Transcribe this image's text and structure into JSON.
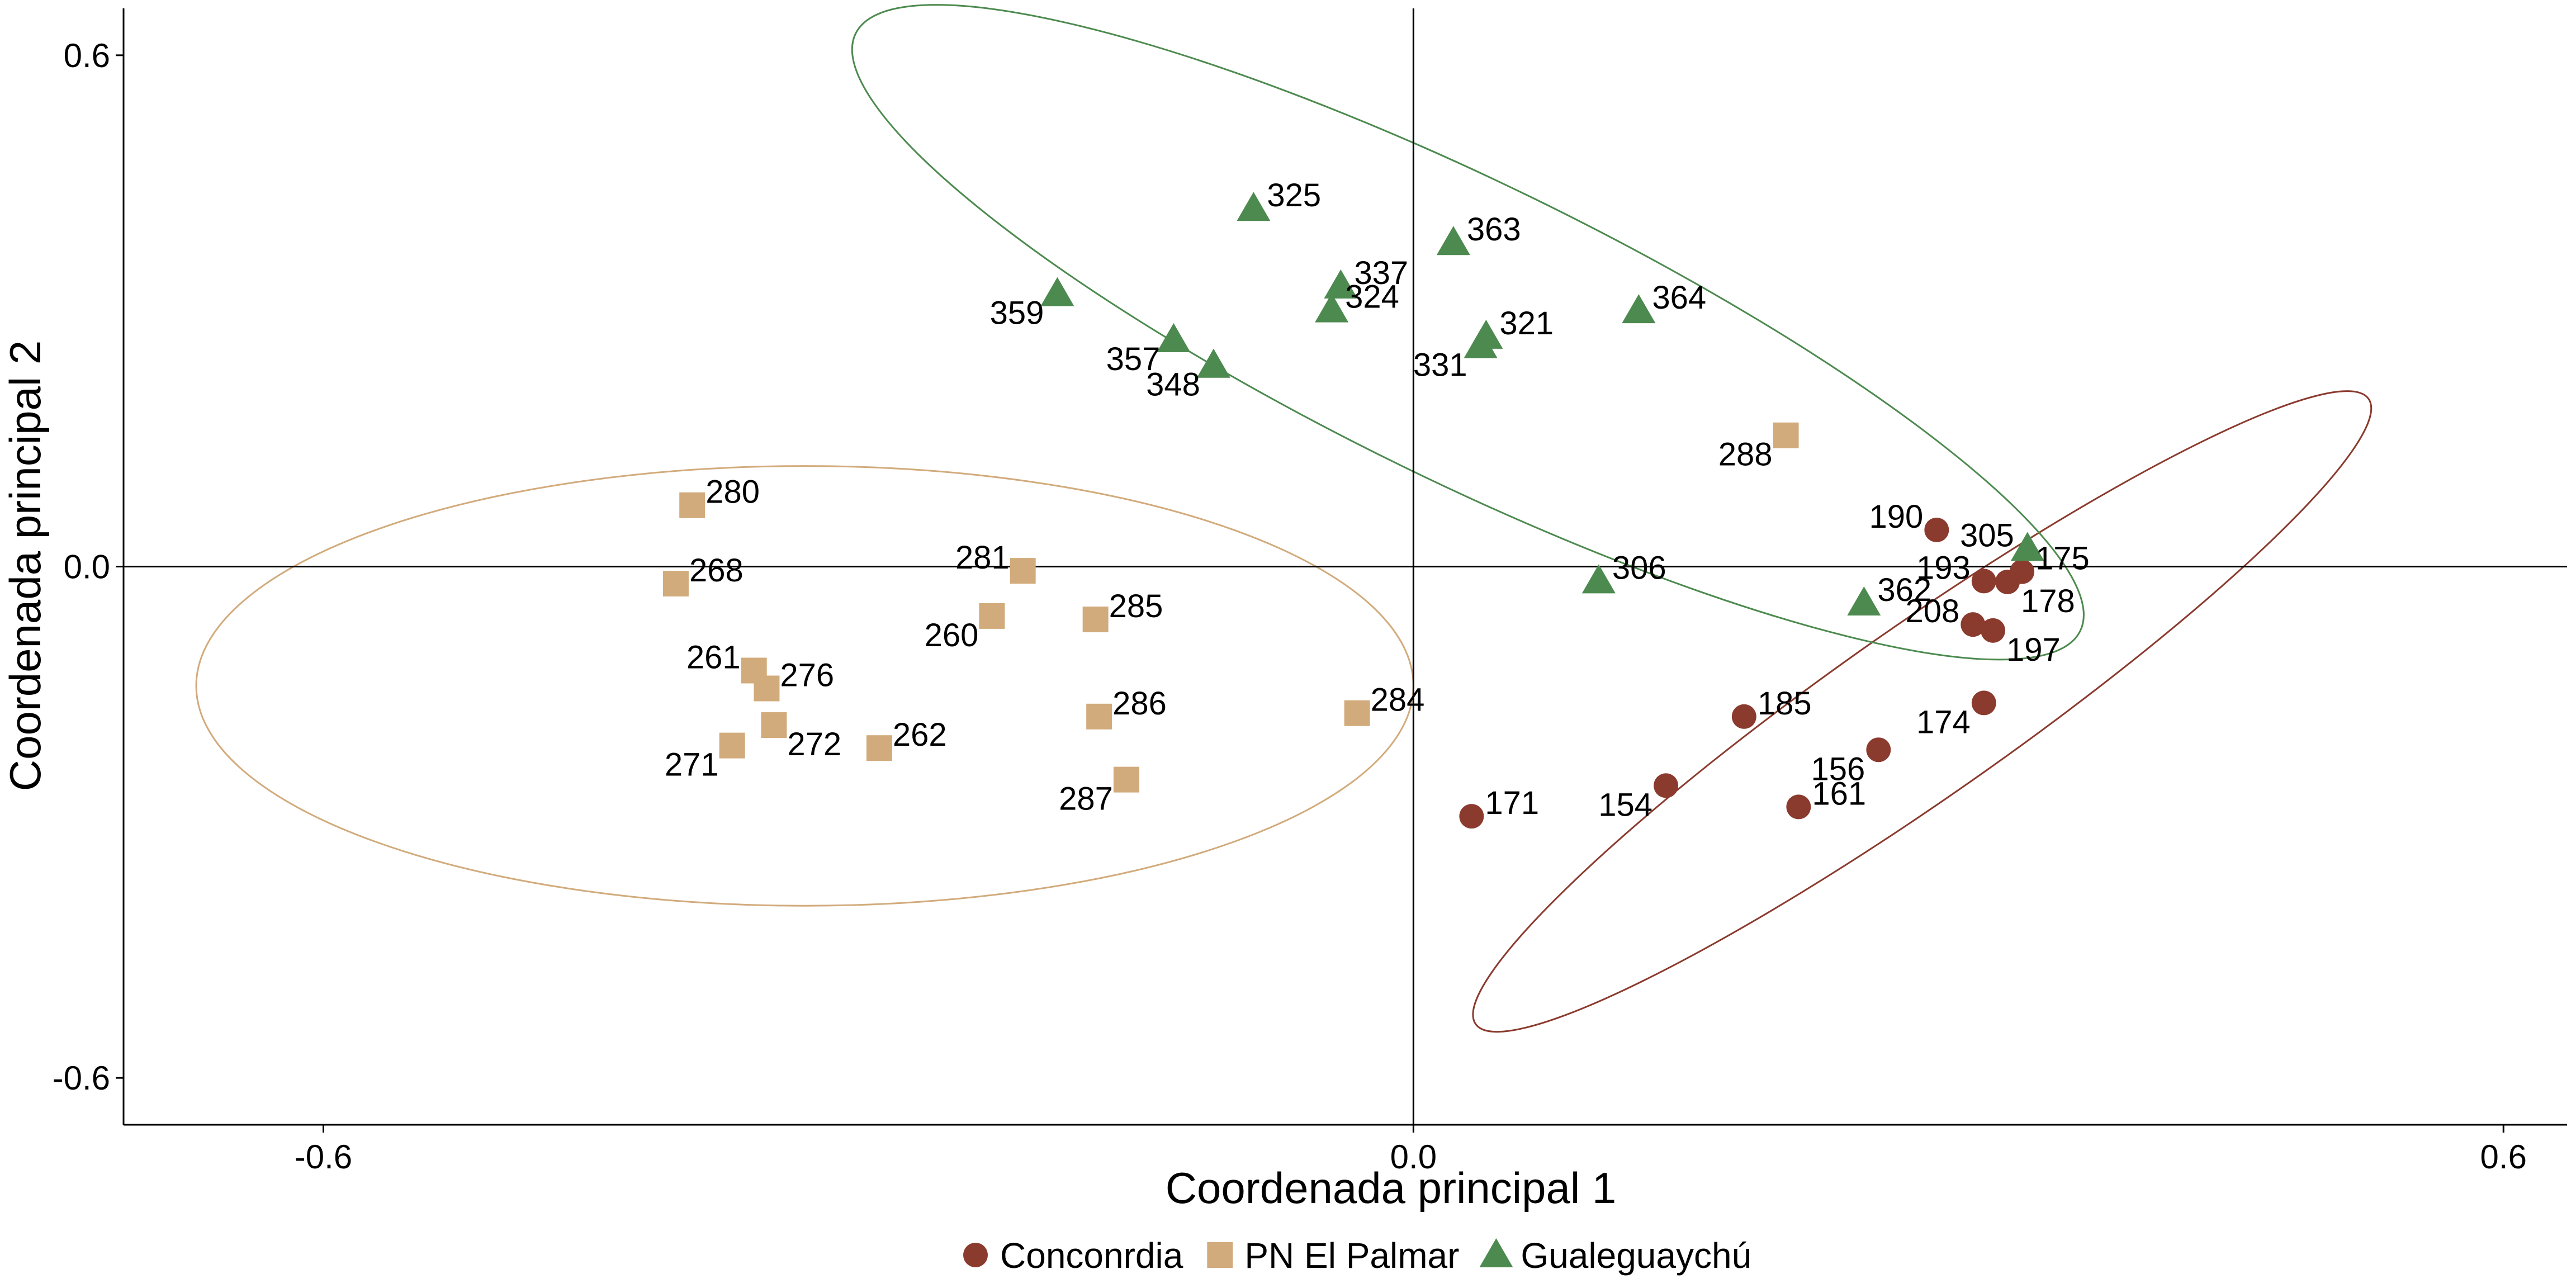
{
  "chart_data": {
    "type": "scatter",
    "xlabel": "Coordenada principal 1",
    "ylabel": "Coordenada principal 2",
    "xlim": [
      -0.71,
      0.635
    ],
    "ylim": [
      -0.655,
      0.655
    ],
    "xticks": [
      {
        "value": -0.6,
        "label": "-0.6"
      },
      {
        "value": 0.0,
        "label": "0.0"
      },
      {
        "value": 0.6,
        "label": "0.6"
      }
    ],
    "yticks": [
      {
        "value": 0.6,
        "label": "0.6"
      },
      {
        "value": 0.0,
        "label": "0.0"
      },
      {
        "value": -0.6,
        "label": "-0.6"
      }
    ],
    "grid": false,
    "legend_position": "bottom",
    "series": [
      {
        "name": "Conconrdia",
        "marker": "circle",
        "color": "#8B3A2E",
        "ellipse": {
          "cx": 0.28,
          "cy": -0.17,
          "rx": 0.3,
          "ry": 0.1,
          "angle": -35
        },
        "points": [
          {
            "label": "190",
            "x": 0.288,
            "y": 0.043
          },
          {
            "label": "193",
            "x": 0.314,
            "y": -0.017
          },
          {
            "label": "175",
            "x": 0.335,
            "y": -0.006
          },
          {
            "label": "178",
            "x": 0.327,
            "y": -0.018
          },
          {
            "label": "208",
            "x": 0.308,
            "y": -0.068
          },
          {
            "label": "197",
            "x": 0.319,
            "y": -0.075
          },
          {
            "label": "174",
            "x": 0.314,
            "y": -0.16
          },
          {
            "label": "185",
            "x": 0.182,
            "y": -0.176
          },
          {
            "label": "156",
            "x": 0.256,
            "y": -0.215
          },
          {
            "label": "154",
            "x": 0.139,
            "y": -0.257
          },
          {
            "label": "161",
            "x": 0.212,
            "y": -0.282
          },
          {
            "label": "171",
            "x": 0.032,
            "y": -0.293
          }
        ]
      },
      {
        "name": "PN El Palmar",
        "marker": "square",
        "color": "#D2AB7C",
        "ellipse": {
          "cx": -0.335,
          "cy": -0.14,
          "rx": 0.335,
          "ry": 0.258,
          "angle": 0
        },
        "points": [
          {
            "label": "288",
            "x": 0.205,
            "y": 0.154
          },
          {
            "label": "280",
            "x": -0.397,
            "y": 0.072
          },
          {
            "label": "268",
            "x": -0.406,
            "y": -0.02
          },
          {
            "label": "281",
            "x": -0.215,
            "y": -0.005
          },
          {
            "label": "260",
            "x": -0.232,
            "y": -0.058
          },
          {
            "label": "285",
            "x": -0.175,
            "y": -0.062
          },
          {
            "label": "261",
            "x": -0.363,
            "y": -0.122
          },
          {
            "label": "276",
            "x": -0.356,
            "y": -0.143
          },
          {
            "label": "272",
            "x": -0.352,
            "y": -0.186
          },
          {
            "label": "271",
            "x": -0.375,
            "y": -0.21
          },
          {
            "label": "262",
            "x": -0.294,
            "y": -0.213
          },
          {
            "label": "286",
            "x": -0.173,
            "y": -0.176
          },
          {
            "label": "287",
            "x": -0.158,
            "y": -0.25
          },
          {
            "label": "284",
            "x": -0.031,
            "y": -0.172
          }
        ]
      },
      {
        "name": "Gualeguaychú",
        "marker": "triangle",
        "color": "#4D8A4F",
        "ellipse": {
          "cx": 0.03,
          "cy": 0.275,
          "rx": 0.375,
          "ry": 0.175,
          "angle": 26
        },
        "points": [
          {
            "label": "325",
            "x": -0.088,
            "y": 0.42
          },
          {
            "label": "363",
            "x": 0.022,
            "y": 0.38
          },
          {
            "label": "337",
            "x": -0.04,
            "y": 0.329
          },
          {
            "label": "324",
            "x": -0.045,
            "y": 0.301
          },
          {
            "label": "359",
            "x": -0.196,
            "y": 0.32
          },
          {
            "label": "364",
            "x": 0.124,
            "y": 0.3
          },
          {
            "label": "321",
            "x": 0.04,
            "y": 0.27
          },
          {
            "label": "331",
            "x": 0.037,
            "y": 0.259
          },
          {
            "label": "357",
            "x": -0.132,
            "y": 0.266
          },
          {
            "label": "348",
            "x": -0.11,
            "y": 0.236
          },
          {
            "label": "306",
            "x": 0.102,
            "y": -0.017
          },
          {
            "label": "362",
            "x": 0.248,
            "y": -0.043
          },
          {
            "label": "305",
            "x": 0.338,
            "y": 0.021
          }
        ]
      }
    ]
  }
}
